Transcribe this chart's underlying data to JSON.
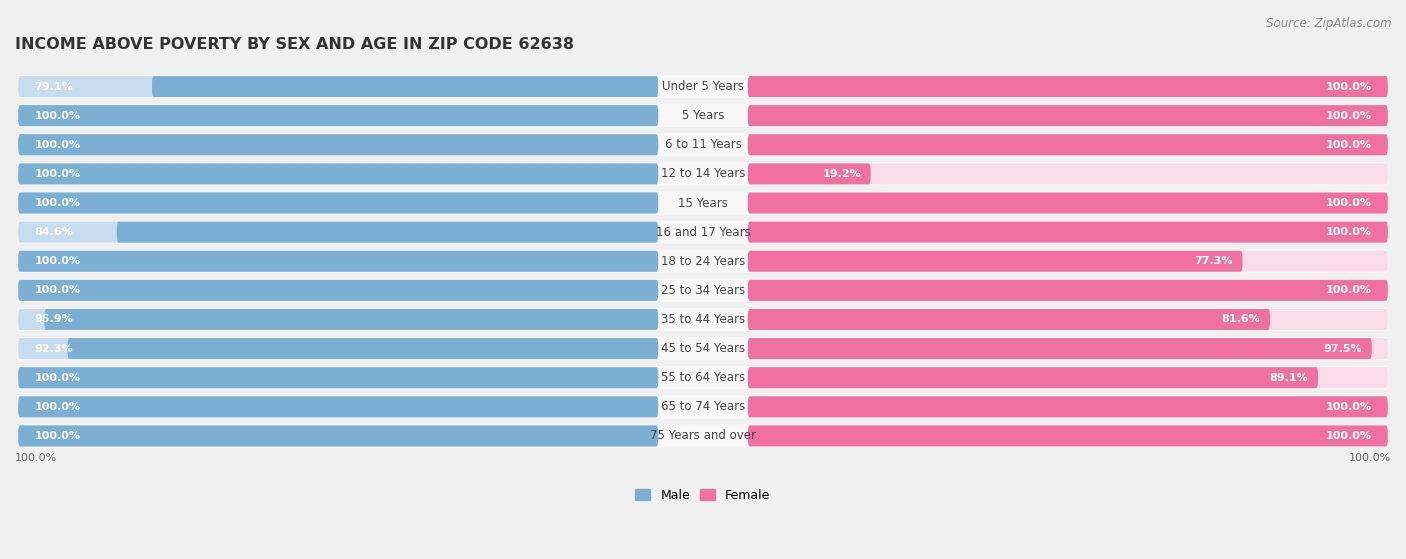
{
  "title": "INCOME ABOVE POVERTY BY SEX AND AGE IN ZIP CODE 62638",
  "source": "Source: ZipAtlas.com",
  "categories": [
    "Under 5 Years",
    "5 Years",
    "6 to 11 Years",
    "12 to 14 Years",
    "15 Years",
    "16 and 17 Years",
    "18 to 24 Years",
    "25 to 34 Years",
    "35 to 44 Years",
    "45 to 54 Years",
    "55 to 64 Years",
    "65 to 74 Years",
    "75 Years and over"
  ],
  "male_values": [
    79.1,
    100.0,
    100.0,
    100.0,
    100.0,
    84.6,
    100.0,
    100.0,
    95.9,
    92.3,
    100.0,
    100.0,
    100.0
  ],
  "female_values": [
    100.0,
    100.0,
    100.0,
    19.2,
    100.0,
    100.0,
    77.3,
    100.0,
    81.6,
    97.5,
    89.1,
    100.0,
    100.0
  ],
  "male_color": "#7BAFD4",
  "female_color": "#F070A0",
  "male_light": "#C8DCF0",
  "female_light": "#FADCE8",
  "row_bg": "#EFEFEF",
  "male_label": "Male",
  "female_label": "Female",
  "background_color": "#f0f0f0",
  "bar_height": 0.72,
  "title_fontsize": 11.5,
  "source_fontsize": 8.5,
  "label_fontsize": 8,
  "category_fontsize": 8.5,
  "legend_fontsize": 9
}
